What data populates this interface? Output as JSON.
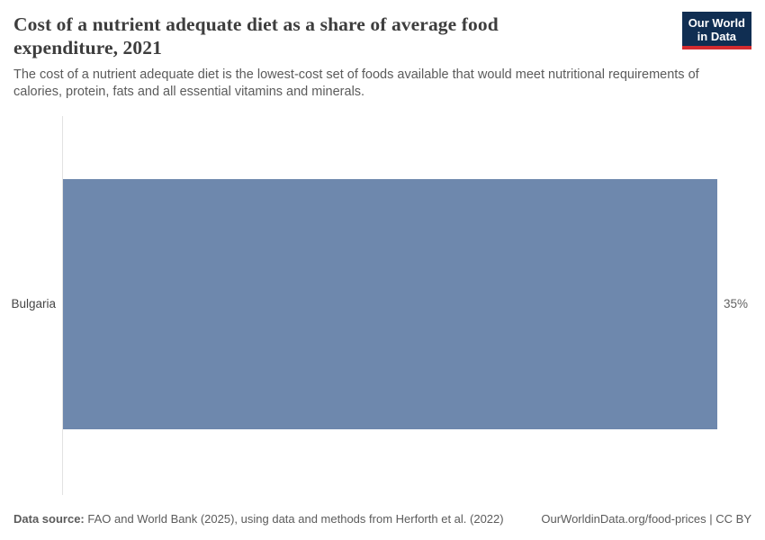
{
  "header": {
    "title": "Cost of a nutrient adequate diet as a share of average food expenditure, 2021",
    "subtitle": "The cost of a nutrient adequate diet is the lowest-cost set of foods available that would meet nutritional requirements of calories, protein, fats and all essential vitamins and minerals.",
    "logo": {
      "line1": "Our World",
      "line2": "in Data",
      "bg_color": "#102e52",
      "accent_color": "#d42b2f"
    }
  },
  "chart_data": {
    "type": "bar",
    "orientation": "horizontal",
    "title": "Cost of a nutrient adequate diet as a share of average food expenditure, 2021",
    "year": "2021",
    "categories": [
      "Bulgaria"
    ],
    "values": [
      35
    ],
    "value_labels": [
      "35%"
    ],
    "unit": "%",
    "xlim": [
      0,
      35
    ],
    "grid": false,
    "legend": "none",
    "bar_color": "#6e88ad",
    "axis_color": "#e2e2e2"
  },
  "footer": {
    "source_label": "Data source:",
    "source_text": " FAO and World Bank (2025), using data and methods from Herforth et al. (2022)",
    "url": "OurWorldinData.org/food-prices",
    "separator": " | ",
    "license": "CC BY"
  }
}
